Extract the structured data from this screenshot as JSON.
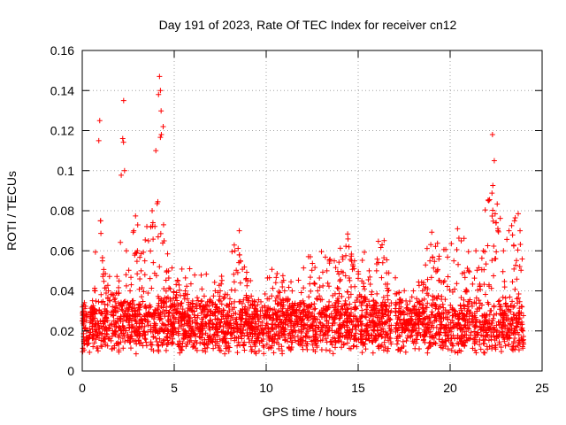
{
  "chart_data": {
    "type": "scatter",
    "title": "Day 191 of 2023, Rate Of TEC Index for receiver cn12",
    "xlabel": "GPS time / hours",
    "ylabel": "ROTI / TECUs",
    "xlim": [
      0,
      25
    ],
    "ylim": [
      0,
      0.16
    ],
    "xticks": [
      0,
      5,
      10,
      15,
      20,
      25
    ],
    "xtick_labels": [
      "0",
      "5",
      "10",
      "15",
      "20",
      "25"
    ],
    "yticks": [
      0,
      0.02,
      0.04,
      0.06,
      0.08,
      0.1,
      0.12,
      0.14,
      0.16
    ],
    "ytick_labels": [
      "0",
      "0.02",
      "0.04",
      "0.06",
      "0.08",
      "0.1",
      "0.12",
      "0.14",
      "0.16"
    ],
    "grid": true,
    "marker": "+",
    "color": "#ff0000",
    "gap_hours": [
      16.8,
      17.0
    ],
    "series": [
      {
        "name": "ROTI",
        "x": [
          0.1,
          0.3,
          0.5,
          0.7,
          0.9,
          0.95,
          1.0,
          1.1,
          1.3,
          1.5,
          1.8,
          2.0,
          2.2,
          2.25,
          2.3,
          2.4,
          2.6,
          2.8,
          3.0,
          3.2,
          3.4,
          3.6,
          3.8,
          4.0,
          4.2,
          4.25,
          4.3,
          4.4,
          4.45,
          4.6,
          4.8,
          5.2,
          5.6,
          6.0,
          6.5,
          7.0,
          7.5,
          8.0,
          8.3,
          8.6,
          9.0,
          9.5,
          10.0,
          10.5,
          11.0,
          11.5,
          12.0,
          12.4,
          12.8,
          13.3,
          13.7,
          14.0,
          14.5,
          14.8,
          15.2,
          15.6,
          16.0,
          16.3,
          16.6,
          17.2,
          17.6,
          18.0,
          18.5,
          18.9,
          19.3,
          19.7,
          20.2,
          20.6,
          21.0,
          21.4,
          21.8,
          22.1,
          22.3,
          22.4,
          22.6,
          22.9,
          23.2,
          23.5,
          23.8
        ],
        "y": [
          0.014,
          0.02,
          0.028,
          0.04,
          0.115,
          0.125,
          0.075,
          0.055,
          0.03,
          0.035,
          0.03,
          0.045,
          0.116,
          0.135,
          0.1,
          0.06,
          0.04,
          0.07,
          0.06,
          0.05,
          0.055,
          0.065,
          0.08,
          0.11,
          0.147,
          0.14,
          0.118,
          0.122,
          0.065,
          0.05,
          0.035,
          0.045,
          0.04,
          0.035,
          0.035,
          0.03,
          0.04,
          0.03,
          0.06,
          0.055,
          0.045,
          0.03,
          0.03,
          0.035,
          0.04,
          0.03,
          0.035,
          0.057,
          0.04,
          0.05,
          0.055,
          0.045,
          0.062,
          0.055,
          0.045,
          0.05,
          0.05,
          0.063,
          0.04,
          0.03,
          0.035,
          0.04,
          0.04,
          0.055,
          0.05,
          0.045,
          0.055,
          0.065,
          0.05,
          0.06,
          0.06,
          0.085,
          0.118,
          0.105,
          0.07,
          0.06,
          0.07,
          0.075,
          0.07
        ]
      }
    ]
  }
}
